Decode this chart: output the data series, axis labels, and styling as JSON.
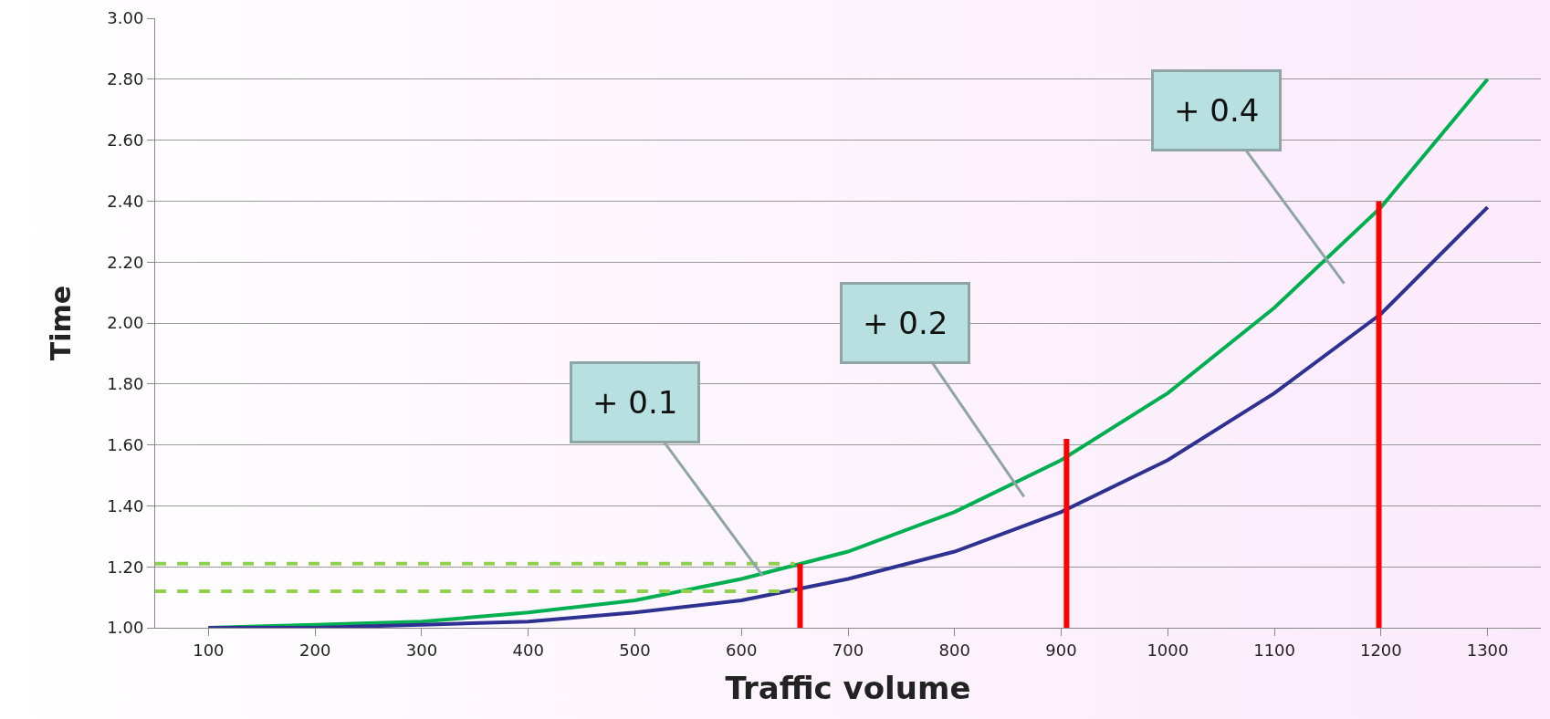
{
  "chart_data": {
    "type": "line",
    "xlabel": "Traffic volume",
    "ylabel": "Time",
    "x": [
      100,
      200,
      300,
      400,
      500,
      600,
      700,
      800,
      900,
      1000,
      1100,
      1200,
      1300
    ],
    "series": [
      {
        "color": "#00b050",
        "values": [
          1.0,
          1.01,
          1.02,
          1.05,
          1.09,
          1.16,
          1.25,
          1.38,
          1.55,
          1.77,
          2.05,
          2.38,
          2.8
        ]
      },
      {
        "color": "#2e3192",
        "values": [
          1.0,
          1.0,
          1.01,
          1.02,
          1.05,
          1.09,
          1.16,
          1.25,
          1.38,
          1.55,
          1.77,
          2.03,
          2.38
        ]
      },
      {
        "color": "#92d050",
        "line_style": "dashed",
        "x": [
          50,
          650
        ],
        "values": [
          1.21,
          1.21
        ]
      },
      {
        "color": "#92d050",
        "line_style": "dashed",
        "x": [
          50,
          650
        ],
        "values": [
          1.12,
          1.12
        ]
      },
      {
        "color": "#ff0000",
        "x": [
          655,
          655
        ],
        "values": [
          1.0,
          1.21
        ]
      },
      {
        "color": "#ff0000",
        "x": [
          905,
          905
        ],
        "values": [
          1.0,
          1.62
        ]
      },
      {
        "color": "#ff0000",
        "x": [
          1198,
          1198
        ],
        "values": [
          1.0,
          2.4
        ]
      }
    ],
    "annotations": [
      {
        "text": "+ 0.1",
        "x": 620,
        "y": 1.17
      },
      "+ 0.2",
      "+ 0.4"
    ],
    "xlim": [
      50,
      1350
    ],
    "xticks": [
      100,
      200,
      300,
      400,
      500,
      600,
      700,
      800,
      900,
      1000,
      1100,
      1200,
      1300
    ],
    "ylim": [
      1,
      3
    ],
    "yticks": [
      {
        "value": 1,
        "label": "1.00"
      },
      {
        "value": 1.2,
        "label": "1.20"
      },
      {
        "value": 1.4,
        "label": "1.40"
      },
      {
        "value": 1.6,
        "label": "1.60"
      },
      {
        "value": 1.8,
        "label": "1.80"
      },
      {
        "value": 2,
        "label": "2.00"
      },
      {
        "value": 2.2,
        "label": "2.20"
      },
      {
        "value": 2.4,
        "label": "2.40"
      },
      {
        "value": 2.6,
        "label": "2.60"
      },
      {
        "value": 2.8,
        "label": "2.80"
      },
      {
        "value": 3,
        "label": "3.00"
      }
    ],
    "grid": "y"
  }
}
